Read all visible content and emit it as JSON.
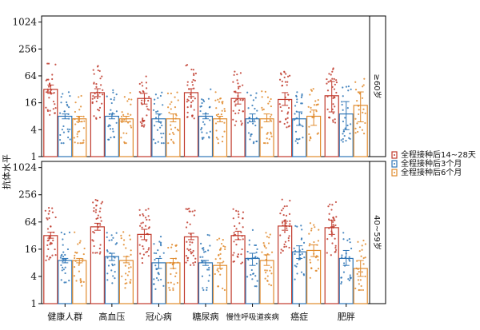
{
  "chart_data": {
    "type": "bar",
    "scale": "log2",
    "ylabel": "抗体水平",
    "y_ticks": [
      1,
      4,
      16,
      64,
      256,
      1024
    ],
    "ylim": [
      1,
      1400
    ],
    "categories": [
      "健康人群",
      "高血压",
      "冠心病",
      "糖尿病",
      "慢性呼吸道疾病",
      "癌症",
      "肥胖"
    ],
    "series": [
      {
        "name": "全程接种后14~28天",
        "color": "#c0392b"
      },
      {
        "name": "全程接种后3个月",
        "color": "#2e75b6"
      },
      {
        "name": "全程接种后6个月",
        "color": "#e08a2c"
      }
    ],
    "legend_position": "right",
    "grid": false,
    "panels": [
      {
        "strip": "≥60岁",
        "values": [
          [
            32,
            8,
            7
          ],
          [
            27,
            8,
            7
          ],
          [
            20,
            7,
            7
          ],
          [
            27,
            8,
            7
          ],
          [
            20,
            7,
            7
          ],
          [
            19,
            7,
            8
          ],
          [
            23,
            9,
            14
          ]
        ],
        "ci": [
          [
            [
              26,
              40
            ],
            [
              7,
              9
            ],
            [
              6,
              8
            ]
          ],
          [
            [
              22,
              33
            ],
            [
              7,
              9
            ],
            [
              6,
              8
            ]
          ],
          [
            [
              15,
              26
            ],
            [
              6,
              9
            ],
            [
              6,
              9
            ]
          ],
          [
            [
              22,
              33
            ],
            [
              7,
              9
            ],
            [
              6,
              8
            ]
          ],
          [
            [
              15,
              27
            ],
            [
              6,
              9
            ],
            [
              6,
              9
            ]
          ],
          [
            [
              14,
              27
            ],
            [
              5,
              10
            ],
            [
              5,
              11
            ]
          ],
          [
            [
              10,
              48
            ],
            [
              4,
              17
            ],
            [
              6,
              28
            ]
          ]
        ]
      },
      {
        "strip": "40~59岁",
        "values": [
          [
            32,
            9,
            9
          ],
          [
            50,
            11,
            9
          ],
          [
            34,
            8,
            8
          ],
          [
            30,
            8,
            7
          ],
          [
            32,
            10,
            9
          ],
          [
            52,
            14,
            15
          ],
          [
            48,
            10,
            6
          ]
        ],
        "ci": [
          [
            [
              28,
              38
            ],
            [
              8,
              10
            ],
            [
              8,
              10
            ]
          ],
          [
            [
              42,
              60
            ],
            [
              9,
              13
            ],
            [
              8,
              11
            ]
          ],
          [
            [
              26,
              44
            ],
            [
              6,
              10
            ],
            [
              6,
              10
            ]
          ],
          [
            [
              26,
              36
            ],
            [
              7,
              9
            ],
            [
              6,
              8
            ]
          ],
          [
            [
              26,
              40
            ],
            [
              7,
              13
            ],
            [
              7,
              12
            ]
          ],
          [
            [
              42,
              66
            ],
            [
              10,
              19
            ],
            [
              11,
              20
            ]
          ],
          [
            [
              34,
              70
            ],
            [
              7,
              15
            ],
            [
              4,
              9
            ]
          ]
        ]
      }
    ]
  }
}
